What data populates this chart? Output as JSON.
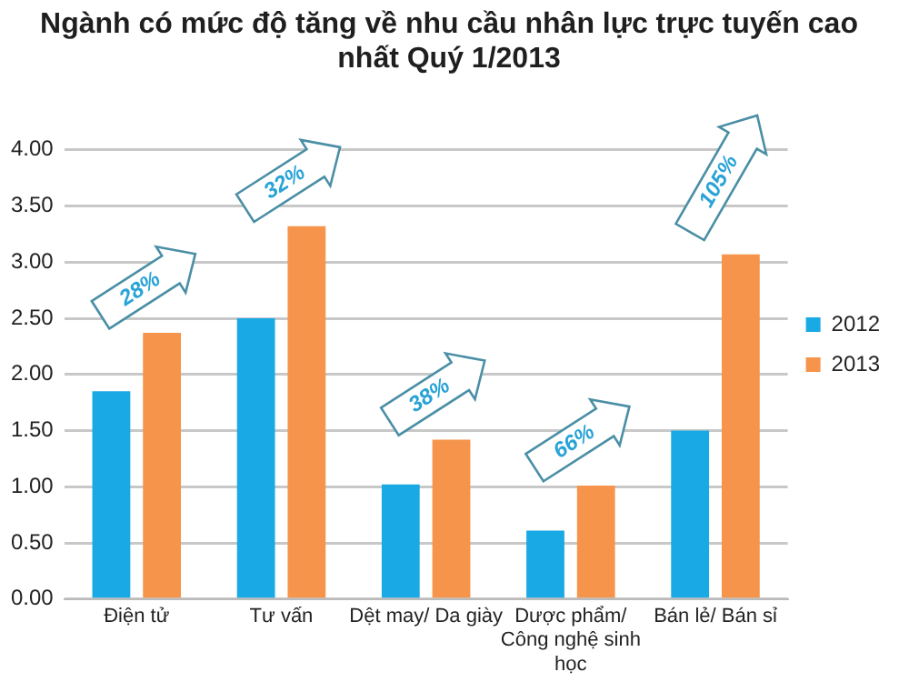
{
  "chart_data": {
    "type": "bar",
    "title": "Ngành có mức độ tăng về nhu cầu nhân lực trực tuyến cao nhất Quý 1/2013",
    "categories": [
      "Điện tử",
      "Tư vấn",
      "Dệt may/ Da giày",
      "Dược phẩm/ Công nghệ sinh học",
      "Bán lẻ/ Bán sỉ"
    ],
    "series": [
      {
        "name": "2012",
        "color": "#19a9e5",
        "values": [
          1.85,
          2.5,
          1.02,
          0.61,
          1.5
        ]
      },
      {
        "name": "2013",
        "color": "#f5944a",
        "values": [
          2.37,
          3.32,
          1.42,
          1.01,
          3.07
        ]
      }
    ],
    "ylim": [
      0,
      4
    ],
    "yticks": [
      {
        "value": 0,
        "label": "0.00"
      },
      {
        "value": 0.5,
        "label": "0.50"
      },
      {
        "value": 1,
        "label": "1.00"
      },
      {
        "value": 1.5,
        "label": "1.50"
      },
      {
        "value": 2,
        "label": "2.00"
      },
      {
        "value": 2.5,
        "label": "2.50"
      },
      {
        "value": 3,
        "label": "3.00"
      },
      {
        "value": 3.5,
        "label": "3.50"
      },
      {
        "value": 4,
        "label": "4.00"
      }
    ],
    "grid": "y",
    "legend": "right",
    "annotations": [
      "28%",
      "32%",
      "38%",
      "66%",
      "105%"
    ]
  }
}
